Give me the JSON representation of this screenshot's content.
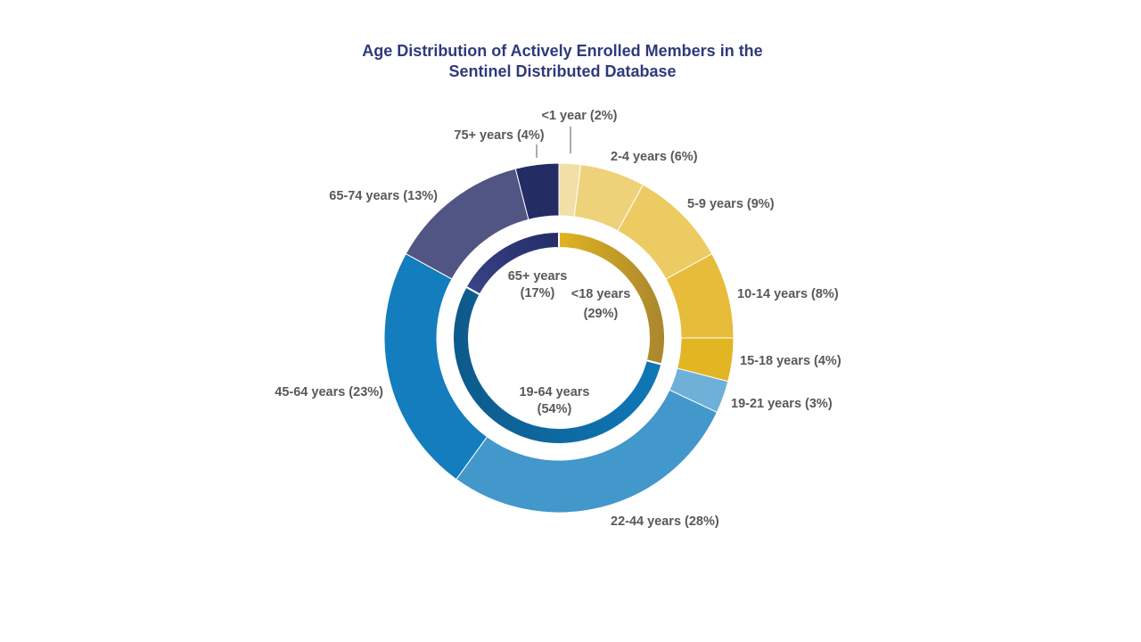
{
  "chart_data": {
    "type": "donut",
    "title_line1": "Age Distribution of Actively Enrolled Members in the",
    "title_line2": "Sentinel Distributed Database",
    "outer_ring": [
      {
        "label": "<1 year",
        "value": 2,
        "display": "<1 year (2%)",
        "color": "#f2dfa5"
      },
      {
        "label": "2-4 years",
        "value": 6,
        "display": "2-4 years (6%)",
        "color": "#eed27a"
      },
      {
        "label": "5-9 years",
        "value": 9,
        "display": "5-9 years (9%)",
        "color": "#ebcb62"
      },
      {
        "label": "10-14 years",
        "value": 8,
        "display": "10-14 years (8%)",
        "color": "#e6bc3a"
      },
      {
        "label": "15-18 years",
        "value": 4,
        "display": "15-18 years (4%)",
        "color": "#e2b522"
      },
      {
        "label": "19-21 years",
        "value": 3,
        "display": "19-21 years (3%)",
        "color": "#6fb0d8"
      },
      {
        "label": "22-44 years",
        "value": 28,
        "display": "22-44 years (28%)",
        "color": "#4297cb"
      },
      {
        "label": "45-64 years",
        "value": 23,
        "display": "45-64 years (23%)",
        "color": "#137dbd"
      },
      {
        "label": "65-74 years",
        "value": 13,
        "display": "65-74 years (13%)",
        "color": "#505584"
      },
      {
        "label": "75+ years",
        "value": 4,
        "display": "75+ years (4%)",
        "color": "#232c63"
      }
    ],
    "inner_ring": [
      {
        "label": "<18 years",
        "value": 29,
        "pct": "(29%)",
        "colors": [
          "#e0b321",
          "#a8862e"
        ]
      },
      {
        "label": "19-64 years",
        "value": 54,
        "pct": "(54%)",
        "colors": [
          "#0f78b8",
          "#0d5a8a"
        ]
      },
      {
        "label": "65+ years",
        "value": 17,
        "pct": "(17%)",
        "colors": [
          "#3a4488",
          "#232d68"
        ]
      }
    ]
  }
}
